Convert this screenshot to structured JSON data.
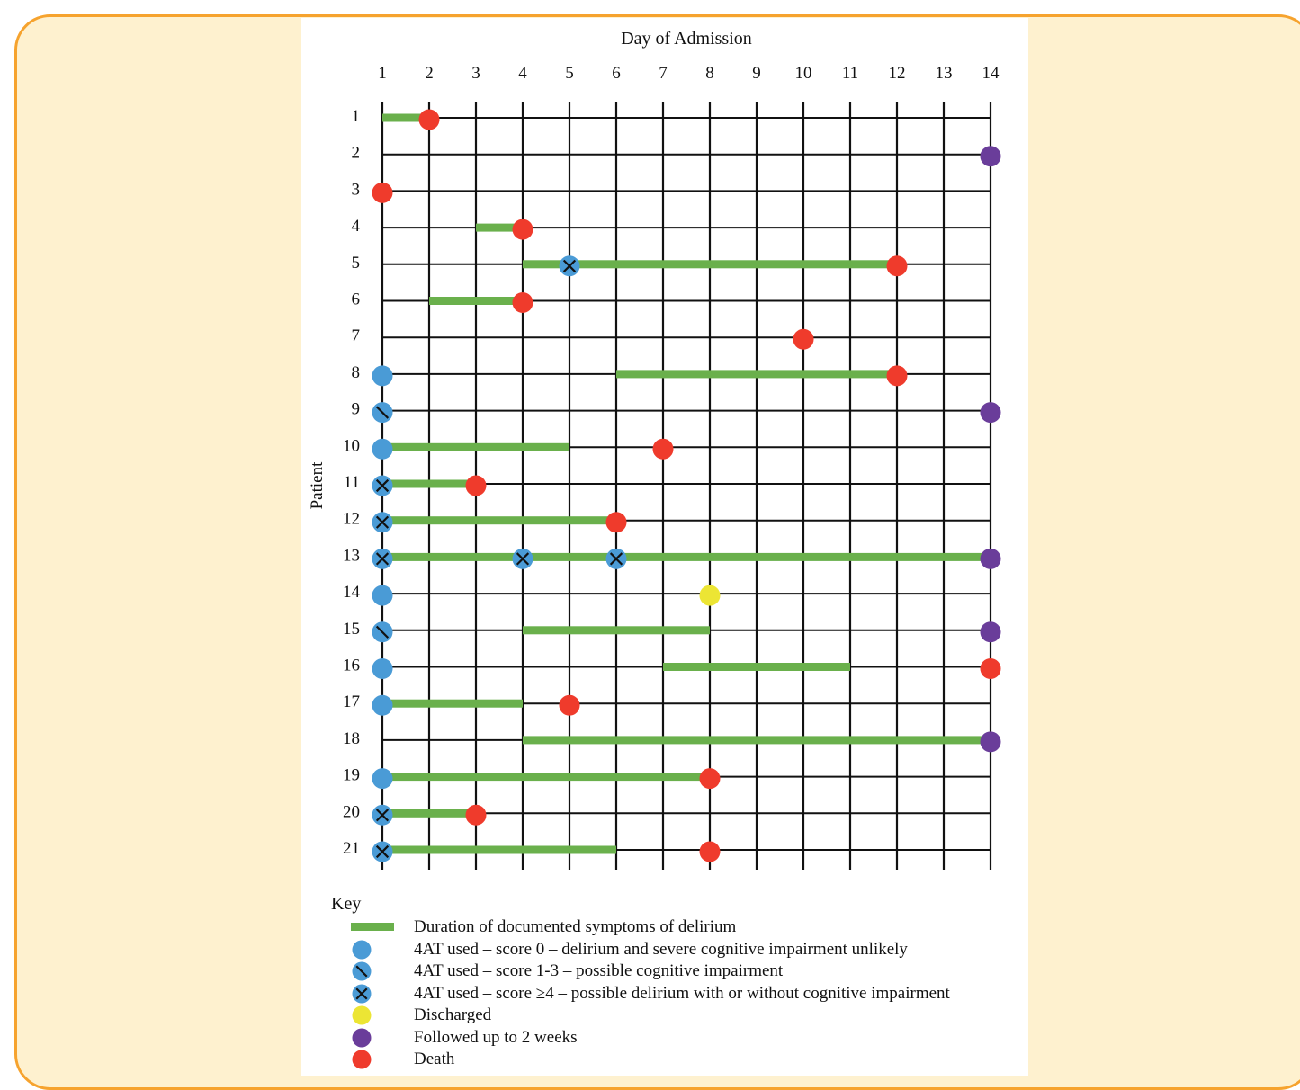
{
  "chart_data": {
    "type": "timeline",
    "title": "",
    "xlabel": "Day of Admission",
    "ylabel": "Patient",
    "x_ticks": [
      1,
      2,
      3,
      4,
      5,
      6,
      7,
      8,
      9,
      10,
      11,
      12,
      13,
      14
    ],
    "patients": [
      1,
      2,
      3,
      4,
      5,
      6,
      7,
      8,
      9,
      10,
      11,
      12,
      13,
      14,
      15,
      16,
      17,
      18,
      19,
      20,
      21
    ],
    "delirium_duration": [
      {
        "patient": 1,
        "start": 1,
        "end": 2
      },
      {
        "patient": 4,
        "start": 3,
        "end": 4
      },
      {
        "patient": 5,
        "start": 4,
        "end": 12
      },
      {
        "patient": 6,
        "start": 2,
        "end": 4
      },
      {
        "patient": 8,
        "start": 6,
        "end": 12
      },
      {
        "patient": 10,
        "start": 1,
        "end": 5
      },
      {
        "patient": 11,
        "start": 1,
        "end": 3
      },
      {
        "patient": 12,
        "start": 1,
        "end": 6
      },
      {
        "patient": 13,
        "start": 1,
        "end": 14
      },
      {
        "patient": 15,
        "start": 4,
        "end": 8
      },
      {
        "patient": 16,
        "start": 7,
        "end": 11
      },
      {
        "patient": 17,
        "start": 1,
        "end": 4
      },
      {
        "patient": 18,
        "start": 4,
        "end": 14
      },
      {
        "patient": 19,
        "start": 1,
        "end": 8
      },
      {
        "patient": 20,
        "start": 1,
        "end": 3
      },
      {
        "patient": 21,
        "start": 1,
        "end": 6
      }
    ],
    "events": [
      {
        "patient": 1,
        "day": 2,
        "type": "death"
      },
      {
        "patient": 2,
        "day": 14,
        "type": "followed"
      },
      {
        "patient": 3,
        "day": 1,
        "type": "death"
      },
      {
        "patient": 4,
        "day": 4,
        "type": "death"
      },
      {
        "patient": 5,
        "day": 5,
        "type": "score4"
      },
      {
        "patient": 5,
        "day": 12,
        "type": "death"
      },
      {
        "patient": 6,
        "day": 4,
        "type": "death"
      },
      {
        "patient": 7,
        "day": 10,
        "type": "death"
      },
      {
        "patient": 8,
        "day": 1,
        "type": "score0"
      },
      {
        "patient": 8,
        "day": 12,
        "type": "death"
      },
      {
        "patient": 9,
        "day": 1,
        "type": "score13"
      },
      {
        "patient": 9,
        "day": 14,
        "type": "followed"
      },
      {
        "patient": 10,
        "day": 1,
        "type": "score0"
      },
      {
        "patient": 10,
        "day": 7,
        "type": "death"
      },
      {
        "patient": 11,
        "day": 1,
        "type": "score4"
      },
      {
        "patient": 11,
        "day": 3,
        "type": "death"
      },
      {
        "patient": 12,
        "day": 1,
        "type": "score4"
      },
      {
        "patient": 12,
        "day": 6,
        "type": "death"
      },
      {
        "patient": 13,
        "day": 1,
        "type": "score4"
      },
      {
        "patient": 13,
        "day": 4,
        "type": "score4"
      },
      {
        "patient": 13,
        "day": 6,
        "type": "score4"
      },
      {
        "patient": 13,
        "day": 14,
        "type": "followed"
      },
      {
        "patient": 14,
        "day": 1,
        "type": "score0"
      },
      {
        "patient": 14,
        "day": 8,
        "type": "discharged"
      },
      {
        "patient": 15,
        "day": 1,
        "type": "score13"
      },
      {
        "patient": 15,
        "day": 14,
        "type": "followed"
      },
      {
        "patient": 16,
        "day": 1,
        "type": "score0"
      },
      {
        "patient": 16,
        "day": 14,
        "type": "death"
      },
      {
        "patient": 17,
        "day": 1,
        "type": "score0"
      },
      {
        "patient": 17,
        "day": 5,
        "type": "death"
      },
      {
        "patient": 18,
        "day": 14,
        "type": "followed"
      },
      {
        "patient": 19,
        "day": 1,
        "type": "score0"
      },
      {
        "patient": 19,
        "day": 8,
        "type": "death"
      },
      {
        "patient": 20,
        "day": 1,
        "type": "score4"
      },
      {
        "patient": 20,
        "day": 3,
        "type": "death"
      },
      {
        "patient": 21,
        "day": 1,
        "type": "score4"
      },
      {
        "patient": 21,
        "day": 8,
        "type": "death"
      }
    ],
    "legend": {
      "title": "Key",
      "items": [
        {
          "symbol": "bar",
          "label": "Duration of documented symptoms of delirium"
        },
        {
          "symbol": "score0",
          "label": "4AT used – score 0 – delirium and severe cognitive impairment unlikely"
        },
        {
          "symbol": "score13",
          "label": "4AT used – score 1-3 – possible cognitive impairment"
        },
        {
          "symbol": "score4",
          "label": "4AT used – score ≥4 – possible delirium with or without cognitive impairment"
        },
        {
          "symbol": "discharged",
          "label": "Discharged"
        },
        {
          "symbol": "followed",
          "label": "Followed up to 2 weeks"
        },
        {
          "symbol": "death",
          "label": "Death"
        }
      ]
    },
    "colors": {
      "bar": "#6ab04c",
      "score0": "#4a9bd6",
      "discharged": "#ece534",
      "followed": "#6a3d9a",
      "death": "#ef3b2c",
      "grid": "#111111"
    }
  }
}
